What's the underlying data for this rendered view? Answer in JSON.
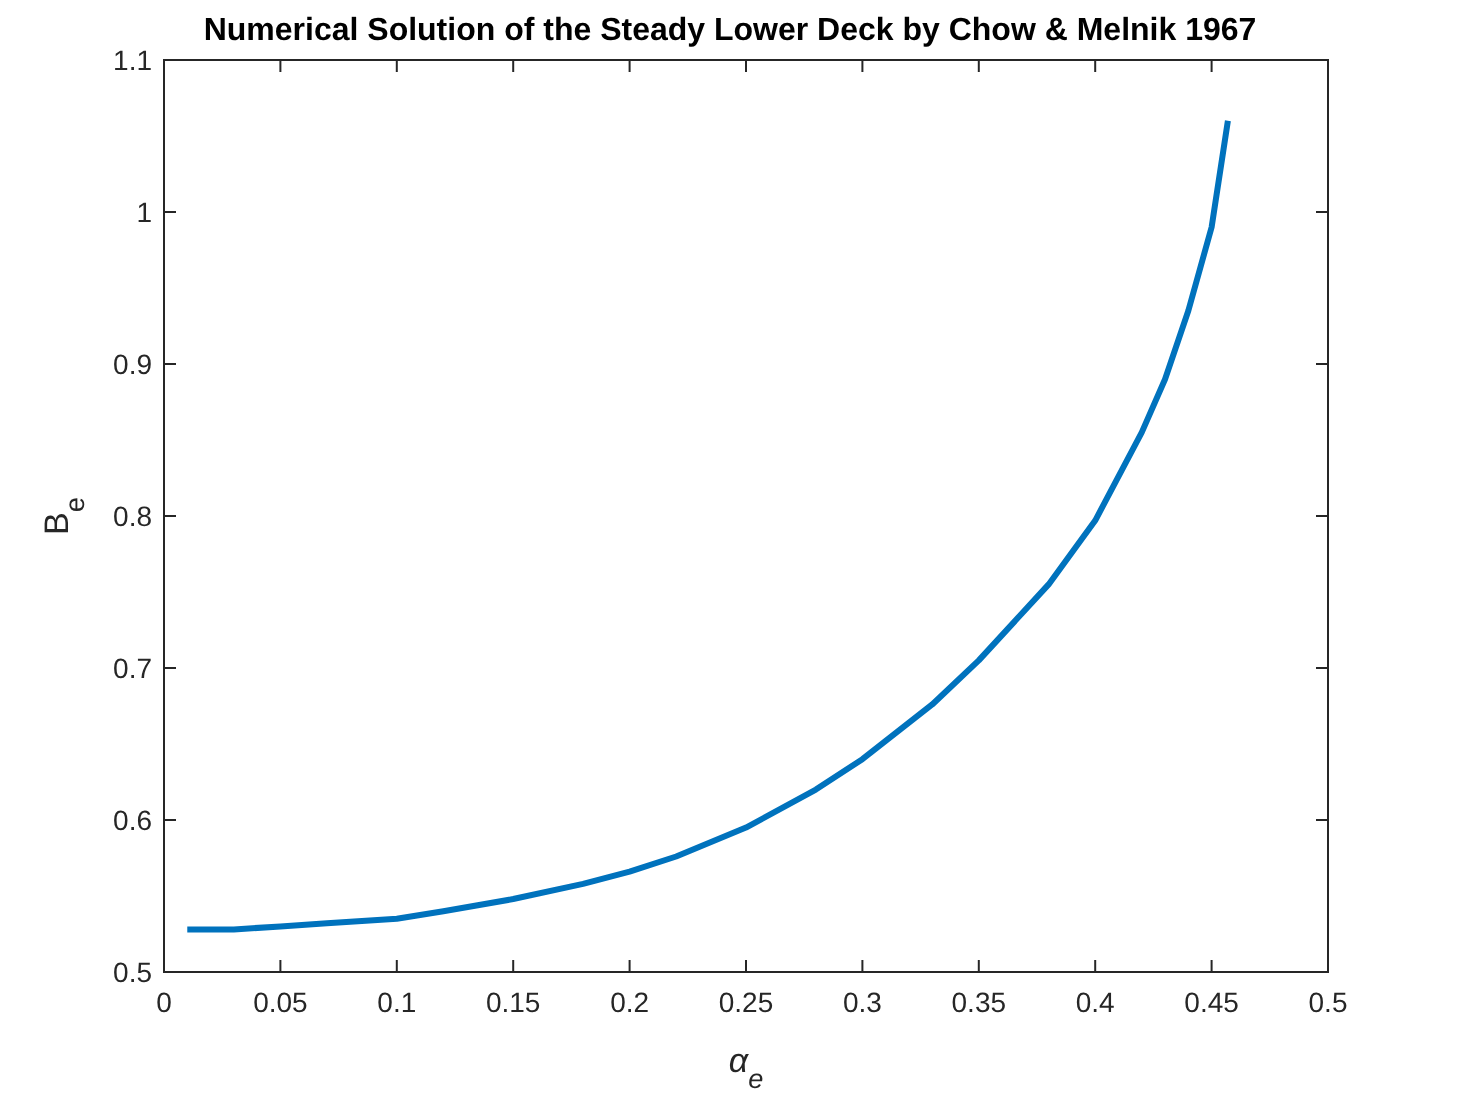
{
  "chart_data": {
    "type": "line",
    "title": "Numerical Solution of the Steady Lower Deck by Chow & Melnik 1967",
    "xlabel": "α$_{e}$",
    "ylabel": "B$_{e}$",
    "x": [
      0.01,
      0.03,
      0.05,
      0.07,
      0.1,
      0.12,
      0.15,
      0.18,
      0.2,
      0.22,
      0.25,
      0.28,
      0.3,
      0.33,
      0.35,
      0.38,
      0.4,
      0.42,
      0.43,
      0.44,
      0.45,
      0.457
    ],
    "series": [
      {
        "color": "#0072bd",
        "values": [
          0.528,
          0.528,
          0.53,
          0.532,
          0.535,
          0.54,
          0.548,
          0.558,
          0.566,
          0.576,
          0.595,
          0.62,
          0.64,
          0.676,
          0.705,
          0.755,
          0.797,
          0.855,
          0.89,
          0.935,
          0.99,
          1.06
        ]
      }
    ],
    "xlim": [
      0,
      0.5
    ],
    "xticks": [
      0,
      0.05,
      0.1,
      0.15,
      0.2,
      0.25,
      0.3,
      0.35,
      0.4,
      0.45,
      0.5
    ],
    "ylim": [
      0.5,
      1.1
    ],
    "yticks": [
      0.5,
      0.6,
      0.7,
      0.8,
      0.9,
      1,
      1.1
    ],
    "grid": false
  }
}
